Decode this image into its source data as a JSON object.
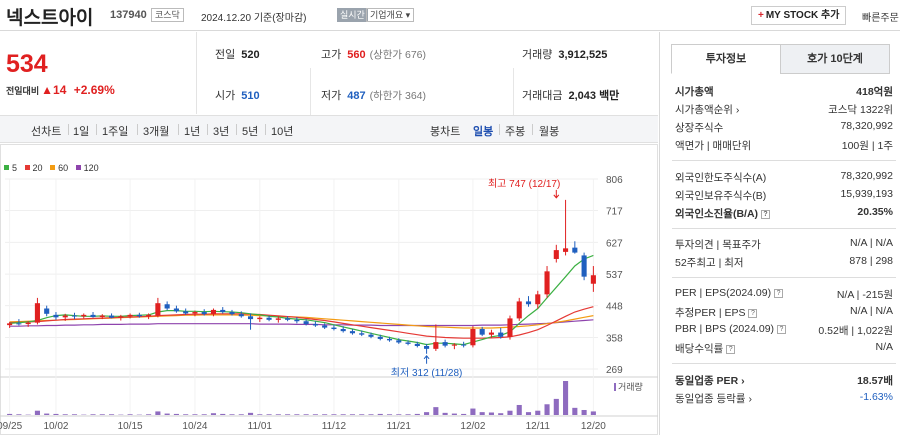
{
  "header": {
    "name": "넥스트아이",
    "code": "137940",
    "market": "코스닥",
    "date": "2024.12.20 기준(장마감)",
    "realtime": "실시간",
    "corp_info": "기업개요",
    "corp_info_arrow": "▾",
    "mystock": "MY STOCK 추가",
    "mystock_plus": "+",
    "quick_order": "빠른주문"
  },
  "price": {
    "current": "534",
    "change_label": "전일대비",
    "change_arrow": "▲",
    "change_value": "14",
    "change_pct": "+2.69%"
  },
  "stats": {
    "prev_label": "전일",
    "prev": "520",
    "high_label": "고가",
    "high": "560",
    "upper_limit": "(상한가 676)",
    "volume_label": "거래량",
    "volume": "3,912,525",
    "open_label": "시가",
    "open": "510",
    "low_label": "저가",
    "low": "487",
    "lower_limit": "(하한가 364)",
    "amount_label": "거래대금",
    "amount": "2,043 백만"
  },
  "chart_tabs": {
    "line": "선차트",
    "periods": [
      "1일",
      "1주일",
      "3개월",
      "1년",
      "3년",
      "5년",
      "10년"
    ],
    "candle": "봉차트",
    "candle_periods": [
      "일봉",
      "주봉",
      "월봉"
    ],
    "selected_candle": "일봉"
  },
  "legend": [
    {
      "label": "5",
      "color": "#3cb043"
    },
    {
      "label": "20",
      "color": "#e53935"
    },
    {
      "label": "60",
      "color": "#f39c12"
    },
    {
      "label": "120",
      "color": "#8e44ad"
    }
  ],
  "chart_data": {
    "type": "candlestick",
    "y_ticks": [
      806,
      717,
      627,
      537,
      448,
      358,
      269
    ],
    "x_ticks": [
      "09/25",
      "10/02",
      "10/15",
      "10/24",
      "11/01",
      "11/12",
      "11/21",
      "12/02",
      "12/11",
      "12/20"
    ],
    "high_annotation": "최고 747 (12/17)",
    "low_annotation": "최저 312 (11/28)",
    "volume_label": "거래량",
    "candles": [
      {
        "o": 393,
        "h": 402,
        "l": 385,
        "c": 398
      },
      {
        "o": 398,
        "h": 410,
        "l": 392,
        "c": 396
      },
      {
        "o": 396,
        "h": 404,
        "l": 388,
        "c": 400
      },
      {
        "o": 400,
        "h": 470,
        "l": 395,
        "c": 455
      },
      {
        "o": 440,
        "h": 448,
        "l": 418,
        "c": 425
      },
      {
        "o": 422,
        "h": 430,
        "l": 408,
        "c": 415
      },
      {
        "o": 415,
        "h": 425,
        "l": 405,
        "c": 420
      },
      {
        "o": 420,
        "h": 428,
        "l": 410,
        "c": 418
      },
      {
        "o": 418,
        "h": 426,
        "l": 412,
        "c": 422
      },
      {
        "o": 422,
        "h": 430,
        "l": 414,
        "c": 416
      },
      {
        "o": 416,
        "h": 424,
        "l": 410,
        "c": 420
      },
      {
        "o": 420,
        "h": 426,
        "l": 412,
        "c": 414
      },
      {
        "o": 414,
        "h": 422,
        "l": 406,
        "c": 418
      },
      {
        "o": 418,
        "h": 426,
        "l": 412,
        "c": 422
      },
      {
        "o": 422,
        "h": 428,
        "l": 414,
        "c": 418
      },
      {
        "o": 418,
        "h": 426,
        "l": 410,
        "c": 422
      },
      {
        "o": 420,
        "h": 470,
        "l": 415,
        "c": 455
      },
      {
        "o": 452,
        "h": 460,
        "l": 435,
        "c": 440
      },
      {
        "o": 440,
        "h": 448,
        "l": 428,
        "c": 432
      },
      {
        "o": 432,
        "h": 440,
        "l": 422,
        "c": 426
      },
      {
        "o": 426,
        "h": 434,
        "l": 418,
        "c": 430
      },
      {
        "o": 430,
        "h": 438,
        "l": 420,
        "c": 424
      },
      {
        "o": 424,
        "h": 440,
        "l": 418,
        "c": 436
      },
      {
        "o": 436,
        "h": 444,
        "l": 426,
        "c": 430
      },
      {
        "o": 430,
        "h": 436,
        "l": 420,
        "c": 424
      },
      {
        "o": 424,
        "h": 432,
        "l": 414,
        "c": 418
      },
      {
        "o": 418,
        "h": 426,
        "l": 380,
        "c": 410
      },
      {
        "o": 410,
        "h": 418,
        "l": 402,
        "c": 414
      },
      {
        "o": 414,
        "h": 420,
        "l": 404,
        "c": 408
      },
      {
        "o": 408,
        "h": 418,
        "l": 400,
        "c": 412
      },
      {
        "o": 412,
        "h": 418,
        "l": 404,
        "c": 408
      },
      {
        "o": 408,
        "h": 416,
        "l": 398,
        "c": 404
      },
      {
        "o": 404,
        "h": 410,
        "l": 392,
        "c": 396
      },
      {
        "o": 396,
        "h": 404,
        "l": 388,
        "c": 392
      },
      {
        "o": 392,
        "h": 398,
        "l": 382,
        "c": 386
      },
      {
        "o": 386,
        "h": 394,
        "l": 378,
        "c": 382
      },
      {
        "o": 382,
        "h": 390,
        "l": 372,
        "c": 376
      },
      {
        "o": 376,
        "h": 382,
        "l": 366,
        "c": 370
      },
      {
        "o": 370,
        "h": 378,
        "l": 362,
        "c": 366
      },
      {
        "o": 366,
        "h": 372,
        "l": 356,
        "c": 360
      },
      {
        "o": 360,
        "h": 366,
        "l": 350,
        "c": 354
      },
      {
        "o": 354,
        "h": 360,
        "l": 346,
        "c": 350
      },
      {
        "o": 350,
        "h": 356,
        "l": 340,
        "c": 344
      },
      {
        "o": 344,
        "h": 350,
        "l": 336,
        "c": 340
      },
      {
        "o": 340,
        "h": 346,
        "l": 330,
        "c": 334
      },
      {
        "o": 334,
        "h": 340,
        "l": 312,
        "c": 326
      },
      {
        "o": 326,
        "h": 395,
        "l": 320,
        "c": 345
      },
      {
        "o": 345,
        "h": 352,
        "l": 330,
        "c": 335
      },
      {
        "o": 335,
        "h": 342,
        "l": 325,
        "c": 338
      },
      {
        "o": 338,
        "h": 346,
        "l": 330,
        "c": 336
      },
      {
        "o": 336,
        "h": 390,
        "l": 330,
        "c": 382
      },
      {
        "o": 382,
        "h": 388,
        "l": 362,
        "c": 366
      },
      {
        "o": 366,
        "h": 380,
        "l": 358,
        "c": 372
      },
      {
        "o": 372,
        "h": 385,
        "l": 355,
        "c": 360
      },
      {
        "o": 360,
        "h": 420,
        "l": 352,
        "c": 412
      },
      {
        "o": 412,
        "h": 470,
        "l": 405,
        "c": 460
      },
      {
        "o": 460,
        "h": 475,
        "l": 445,
        "c": 452
      },
      {
        "o": 452,
        "h": 490,
        "l": 440,
        "c": 480
      },
      {
        "o": 480,
        "h": 560,
        "l": 470,
        "c": 545
      },
      {
        "o": 580,
        "h": 620,
        "l": 570,
        "c": 605
      },
      {
        "o": 600,
        "h": 747,
        "l": 590,
        "c": 610
      },
      {
        "o": 612,
        "h": 630,
        "l": 595,
        "c": 598
      },
      {
        "o": 590,
        "h": 598,
        "l": 520,
        "c": 530
      },
      {
        "o": 510,
        "h": 560,
        "l": 487,
        "c": 534
      }
    ],
    "volumes": [
      3,
      2,
      1,
      12,
      4,
      3,
      2,
      2,
      1,
      2,
      2,
      2,
      1,
      2,
      1,
      2,
      10,
      4,
      3,
      2,
      2,
      2,
      5,
      3,
      2,
      2,
      6,
      2,
      2,
      2,
      2,
      2,
      2,
      2,
      2,
      2,
      2,
      2,
      2,
      2,
      3,
      2,
      2,
      2,
      3,
      8,
      22,
      6,
      4,
      3,
      18,
      8,
      7,
      5,
      12,
      28,
      8,
      12,
      30,
      45,
      95,
      20,
      14,
      10
    ],
    "ma5": [
      398,
      400,
      402,
      406,
      414,
      420,
      422,
      420,
      418,
      418,
      419,
      418,
      418,
      420,
      421,
      422,
      430,
      434,
      434,
      432,
      432,
      431,
      432,
      431,
      430,
      428,
      425,
      422,
      418,
      416,
      412,
      410,
      408,
      404,
      400,
      394,
      388,
      382,
      376,
      370,
      364,
      358,
      352,
      348,
      344,
      338,
      342,
      342,
      340,
      338,
      345,
      352,
      360,
      364,
      374,
      398,
      420,
      440,
      470,
      500,
      530,
      560,
      580,
      590
    ],
    "ma20": [
      400,
      401,
      402,
      403,
      405,
      407,
      409,
      410,
      411,
      412,
      413,
      414,
      415,
      416,
      417,
      418,
      420,
      421,
      422,
      423,
      424,
      424,
      425,
      425,
      425,
      425,
      424,
      423,
      421,
      419,
      417,
      415,
      412,
      409,
      406,
      402,
      398,
      394,
      390,
      386,
      382,
      378,
      374,
      370,
      366,
      362,
      360,
      358,
      357,
      356,
      356,
      356,
      357,
      358,
      360,
      365,
      372,
      380,
      392,
      405,
      418,
      430,
      438,
      445
    ],
    "ma60": [
      402,
      403,
      404,
      405,
      406,
      407,
      408,
      409,
      410,
      411,
      412,
      413,
      414,
      415,
      416,
      417,
      418,
      419,
      420,
      421,
      421,
      422,
      422,
      422,
      422,
      421,
      421,
      420,
      419,
      418,
      417,
      416,
      415,
      413,
      411,
      409,
      407,
      405,
      403,
      401,
      399,
      397,
      395,
      393,
      391,
      389,
      388,
      387,
      386,
      385,
      385,
      385,
      385,
      386,
      387,
      389,
      391,
      394,
      397,
      401,
      405,
      410,
      415,
      420
    ],
    "ma120": [
      390,
      390,
      391,
      391,
      392,
      392,
      393,
      393,
      394,
      394,
      395,
      395,
      395,
      396,
      396,
      396,
      397,
      397,
      397,
      397,
      397,
      397,
      397,
      397,
      397,
      397,
      397,
      396,
      396,
      396,
      396,
      395,
      395,
      395,
      394,
      394,
      394,
      393,
      393,
      393,
      392,
      392,
      392,
      392,
      392,
      392,
      392,
      392,
      392,
      392,
      392,
      393,
      393,
      393,
      394,
      395,
      396,
      397,
      398,
      400,
      402,
      404,
      406,
      408
    ]
  },
  "side": {
    "tab_invest": "투자정보",
    "tab_hoga": "호가 10단계",
    "mktcap_label": "시가총액",
    "mktcap": "418억원",
    "mktcap_rank_label": "시가총액순위",
    "mktcap_rank_arrow": "›",
    "mktcap_rank": "코스닥 1322위",
    "shares_label": "상장주식수",
    "shares": "78,320,992",
    "par_label": "액면가 | 매매단위",
    "par": "100원 | 1주",
    "foreign_limit_label": "외국인한도주식수(A)",
    "foreign_limit": "78,320,992",
    "foreign_hold_label": "외국인보유주식수(B)",
    "foreign_hold": "15,939,193",
    "foreign_ratio_label": "외국인소진율(B/A)",
    "foreign_ratio": "20.35%",
    "opinion_label": "투자의견 | 목표주가",
    "opinion": "N/A | N/A",
    "week52_label": "52주최고 | 최저",
    "week52": "878 | 298",
    "per_label": "PER | EPS(2024.09)",
    "per": "N/A | -215원",
    "est_per_label": "추정PER | EPS",
    "est_per": "N/A | N/A",
    "pbr_label": "PBR | BPS (2024.09)",
    "pbr": "0.52배 | 1,022원",
    "div_label": "배당수익률",
    "div": "N/A",
    "ind_per_label": "동일업종 PER",
    "ind_per": "18.57배",
    "ind_rate_label": "동일업종 등락률",
    "ind_rate": "-1.63%",
    "help": "?"
  },
  "colors": {
    "up": "#e02020",
    "down": "#1f5fbf",
    "volume": "#8e6bbf"
  }
}
